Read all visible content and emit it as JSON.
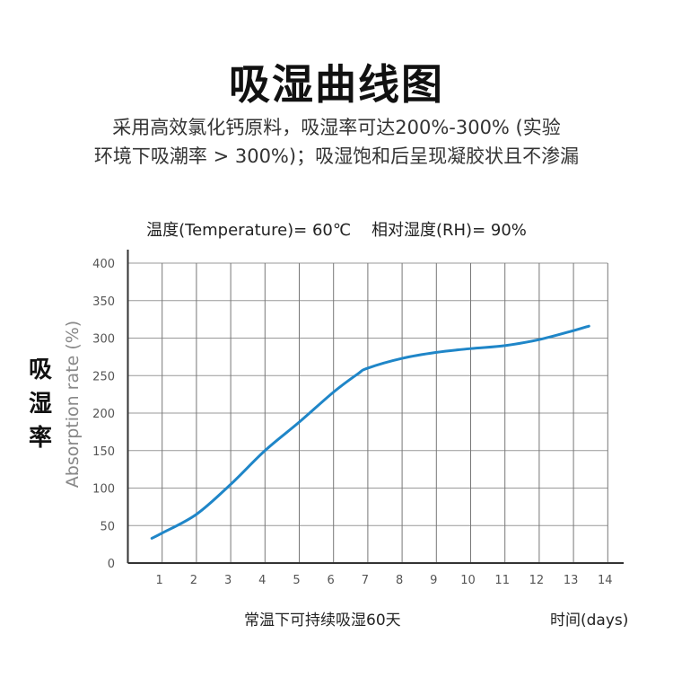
{
  "title": "吸湿曲线图",
  "subtitle_lines": [
    "采用高效氯化钙原料，吸湿率可达200%-300% (实验",
    "环境下吸潮率 > 300%)；吸湿饱和后呈现凝胶状且不渗漏"
  ],
  "conditions": "温度(Temperature)= 60℃    相对湿度(RH)= 90%",
  "note": "常温下可持续吸湿60天",
  "chart_data": {
    "type": "line",
    "title": "",
    "xlabel": "时间(days)",
    "ylabel_cn": "吸湿率",
    "ylabel": "Absorption rate (%)",
    "xlim": [
      0,
      14
    ],
    "ylim": [
      0,
      400
    ],
    "x_ticks": [
      1,
      2,
      3,
      4,
      5,
      6,
      7,
      8,
      9,
      10,
      11,
      12,
      13,
      14
    ],
    "y_ticks": [
      0,
      50,
      100,
      150,
      200,
      250,
      300,
      350,
      400
    ],
    "grid": true,
    "line_color": "#1f86c8",
    "series": [
      {
        "x": [
          0.7,
          1,
          2,
          3,
          4,
          5,
          6,
          6.7,
          7,
          8,
          9,
          10,
          11,
          12,
          13,
          13.45
        ],
        "y": [
          33,
          40,
          65,
          105,
          150,
          188,
          228,
          252,
          260,
          273,
          281,
          286,
          290,
          298,
          310,
          316
        ]
      }
    ]
  }
}
